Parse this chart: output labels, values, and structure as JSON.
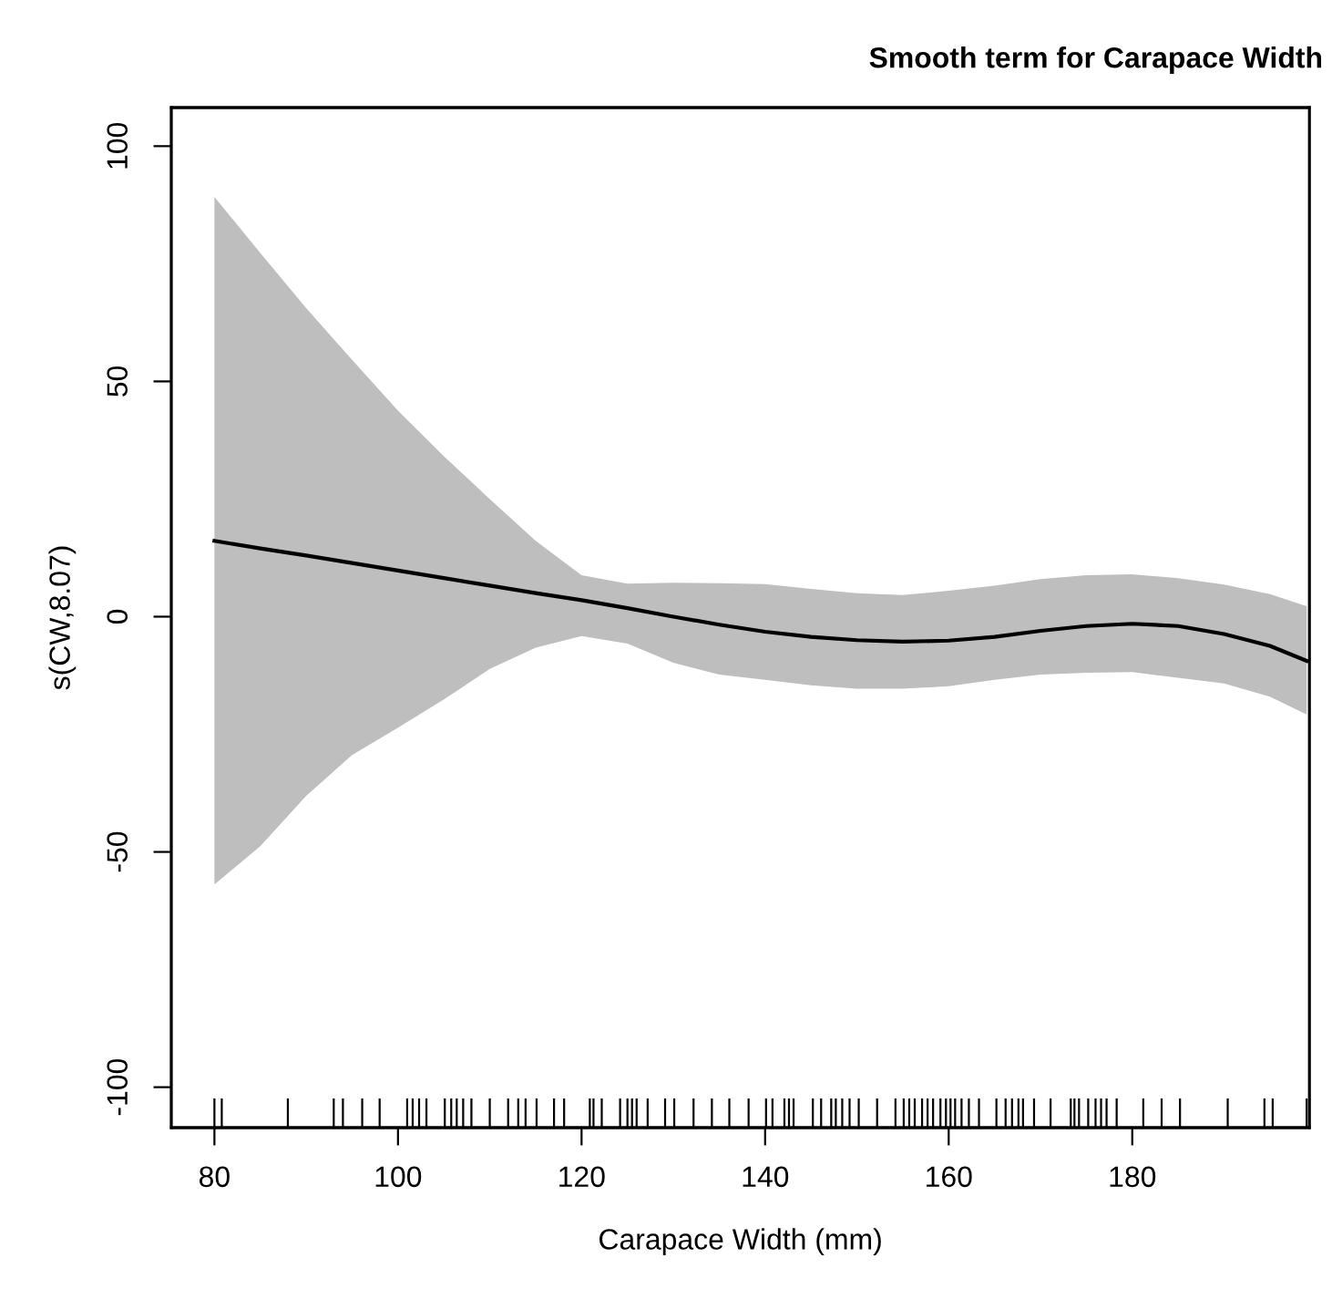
{
  "chart_data": {
    "type": "line",
    "title": "Smooth term for Carapace Width",
    "xlabel": "Carapace Width (mm)",
    "ylabel": "s(CW,8.07)",
    "xlim": [
      75.3,
      199.3
    ],
    "xticks": [
      80,
      100,
      120,
      140,
      160,
      180
    ],
    "ylim": [
      -108.6,
      108.2
    ],
    "yticks": [
      -100,
      -50,
      0,
      50,
      100
    ],
    "series": [
      {
        "color": "#000000",
        "x": [
          80,
          85,
          90,
          95,
          100,
          105,
          110,
          115,
          120,
          125,
          130,
          135,
          140,
          145,
          150,
          155,
          160,
          165,
          170,
          175,
          180,
          185,
          190,
          195,
          199
        ],
        "values": [
          16.1,
          14.5,
          13.0,
          11.4,
          9.8,
          8.2,
          6.6,
          5.0,
          3.5,
          1.8,
          0.0,
          -1.7,
          -3.2,
          -4.3,
          -5.0,
          -5.3,
          -5.1,
          -4.3,
          -3.0,
          -2.0,
          -1.5,
          -2.0,
          -3.7,
          -6.2,
          -9.4
        ],
        "upper": [
          89.2,
          77.3,
          65.6,
          54.6,
          43.8,
          34.1,
          25.0,
          16.1,
          8.8,
          7.0,
          7.2,
          7.1,
          6.9,
          5.9,
          5.0,
          4.6,
          5.5,
          6.6,
          8.0,
          8.8,
          9.0,
          8.2,
          6.8,
          4.8,
          2.2
        ],
        "lower": [
          -56.9,
          -48.8,
          -38.1,
          -29.4,
          -23.6,
          -17.6,
          -11.1,
          -6.6,
          -4.1,
          -5.7,
          -9.8,
          -12.3,
          -13.4,
          -14.6,
          -15.3,
          -15.3,
          -14.8,
          -13.4,
          -12.3,
          -11.9,
          -11.8,
          -13.0,
          -14.2,
          -17.0,
          -20.8
        ]
      },
      {
        "type": "bar",
        "color": "#000000",
        "x": [
          80.0,
          80.8,
          88.0,
          93.0,
          94.0,
          96.1,
          98.0,
          101.0,
          101.6,
          102.3,
          103.1,
          105.1,
          105.8,
          106.4,
          107.1,
          108.0,
          110.0,
          112.0,
          113.1,
          113.9,
          115.1,
          117.0,
          118.1,
          120.9,
          121.3,
          122.2,
          124.2,
          125.0,
          125.5,
          126.0,
          127.2,
          129.1,
          130.1,
          132.2,
          134.2,
          136.1,
          138.2,
          140.1,
          140.8,
          142.1,
          142.6,
          143.1,
          145.2,
          146.1,
          147.2,
          147.7,
          148.4,
          149.2,
          150.2,
          152.2,
          154.2,
          155.1,
          155.7,
          156.3,
          157.1,
          157.7,
          158.3,
          159.1,
          159.7,
          160.2,
          160.7,
          161.4,
          162.2,
          163.3,
          165.2,
          166.2,
          166.9,
          167.6,
          168.1,
          169.3,
          171.1,
          173.3,
          173.7,
          174.2,
          175.2,
          176.0,
          176.6,
          177.2,
          178.3,
          181.2,
          183.2,
          185.2,
          190.4,
          194.4,
          195.3,
          199.0
        ],
        "base": [
          -108.6,
          -108.6,
          -108.6,
          -108.6,
          -108.6,
          -108.6,
          -108.6,
          -108.6,
          -108.6,
          -108.6,
          -108.6,
          -108.6,
          -108.6,
          -108.6,
          -108.6,
          -108.6,
          -108.6,
          -108.6,
          -108.6,
          -108.6,
          -108.6,
          -108.6,
          -108.6,
          -108.6,
          -108.6,
          -108.6,
          -108.6,
          -108.6,
          -108.6,
          -108.6,
          -108.6,
          -108.6,
          -108.6,
          -108.6,
          -108.6,
          -108.6,
          -108.6,
          -108.6,
          -108.6,
          -108.6,
          -108.6,
          -108.6,
          -108.6,
          -108.6,
          -108.6,
          -108.6,
          -108.6,
          -108.6,
          -108.6,
          -108.6,
          -108.6,
          -108.6,
          -108.6,
          -108.6,
          -108.6,
          -108.6,
          -108.6,
          -108.6,
          -108.6,
          -108.6,
          -108.6,
          -108.6,
          -108.6,
          -108.6,
          -108.6,
          -108.6,
          -108.6,
          -108.6,
          -108.6,
          -108.6,
          -108.6,
          -108.6,
          -108.6,
          -108.6,
          -108.6,
          -108.6,
          -108.6,
          -108.6,
          -108.6,
          -108.6,
          -108.6,
          -108.6,
          -108.6,
          -108.6,
          -108.6,
          -108.6
        ],
        "values": [
          6.2,
          6.2,
          6.2,
          6.2,
          6.2,
          6.2,
          6.2,
          6.2,
          6.2,
          6.2,
          6.2,
          6.2,
          6.2,
          6.2,
          6.2,
          6.2,
          6.2,
          6.2,
          6.2,
          6.2,
          6.2,
          6.2,
          6.2,
          6.2,
          6.2,
          6.2,
          6.2,
          6.2,
          6.2,
          6.2,
          6.2,
          6.2,
          6.2,
          6.2,
          6.2,
          6.2,
          6.2,
          6.2,
          6.2,
          6.2,
          6.2,
          6.2,
          6.2,
          6.2,
          6.2,
          6.2,
          6.2,
          6.2,
          6.2,
          6.2,
          6.2,
          6.2,
          6.2,
          6.2,
          6.2,
          6.2,
          6.2,
          6.2,
          6.2,
          6.2,
          6.2,
          6.2,
          6.2,
          6.2,
          6.2,
          6.2,
          6.2,
          6.2,
          6.2,
          6.2,
          6.2,
          6.2,
          6.2,
          6.2,
          6.2,
          6.2,
          6.2,
          6.2,
          6.2,
          6.2,
          6.2,
          6.2,
          6.2,
          6.2,
          6.2,
          6.2
        ]
      }
    ]
  }
}
